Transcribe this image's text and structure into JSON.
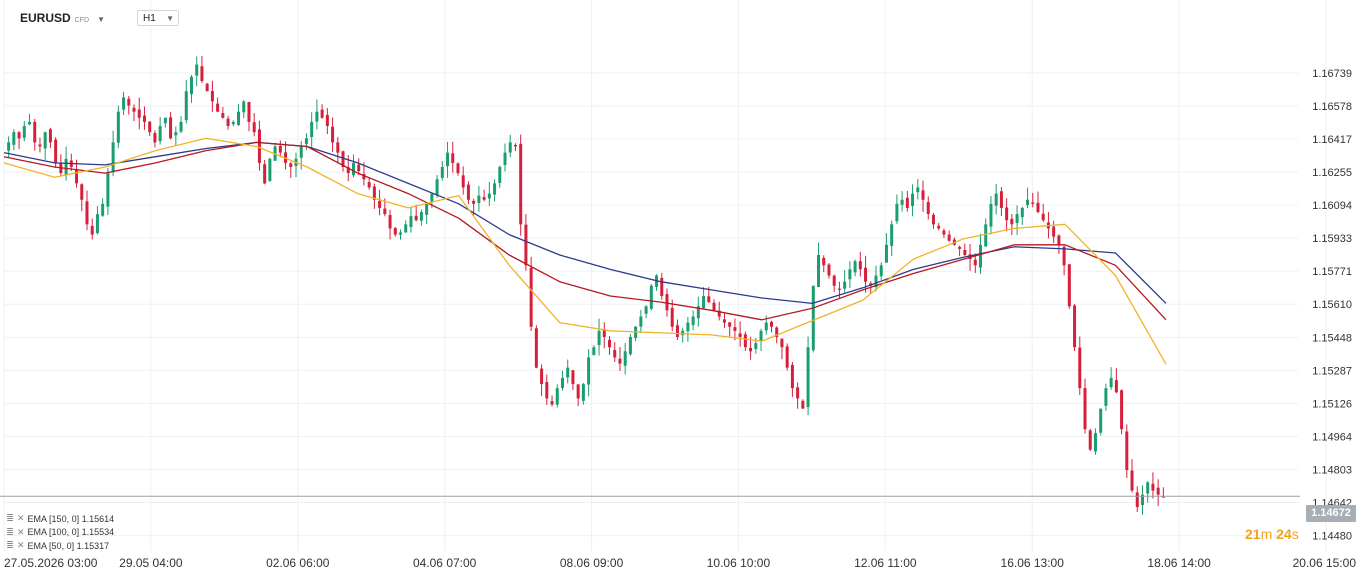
{
  "header": {
    "symbol": "EURUSD",
    "instrument_type": "CFD",
    "timeframe": "H1"
  },
  "legend": [
    {
      "label": "EMA [150, 0] 1.15614",
      "color": "#2d3a8c"
    },
    {
      "label": "EMA [100, 0] 1.15534",
      "color": "#b5191f"
    },
    {
      "label": "EMA [50, 0] 1.15317",
      "color": "#f0b429"
    }
  ],
  "current_price": "1.14672",
  "timer": {
    "minutes": "21",
    "m_unit": "m",
    "seconds": "24",
    "s_unit": "s"
  },
  "colors": {
    "up": "#1a9e6e",
    "down": "#d61f3b",
    "grid": "#eef0f2",
    "axis_text": "#333333"
  },
  "chart_data": {
    "type": "candlestick",
    "ylim": [
      1.144,
      1.169
    ],
    "y_ticks": [
      "1.16739",
      "1.16578",
      "1.16417",
      "1.16255",
      "1.16094",
      "1.15933",
      "1.15771",
      "1.15610",
      "1.15448",
      "1.15287",
      "1.15126",
      "1.14964",
      "1.14803",
      "1.14642",
      "1.14480"
    ],
    "x_ticks": [
      "27.05.2026 03:00",
      "29.05 04:00",
      "02.06 06:00",
      "04.06 07:00",
      "08.06 09:00",
      "10.06 10:00",
      "12.06 11:00",
      "16.06 13:00",
      "18.06 14:00",
      "20.06 15:00"
    ],
    "candles_close": [
      1.164,
      1.1645,
      1.1642,
      1.1648,
      1.165,
      1.164,
      1.1638,
      1.1645,
      1.164,
      1.163,
      1.1625,
      1.1632,
      1.1628,
      1.162,
      1.1612,
      1.16,
      1.1595,
      1.1605,
      1.161,
      1.1625,
      1.164,
      1.1655,
      1.1662,
      1.1658,
      1.1655,
      1.1652,
      1.165,
      1.1645,
      1.164,
      1.1648,
      1.1652,
      1.1642,
      1.1645,
      1.165,
      1.1665,
      1.1672,
      1.1678,
      1.167,
      1.1665,
      1.166,
      1.1655,
      1.1652,
      1.1648,
      1.165,
      1.1655,
      1.166,
      1.165,
      1.1645,
      1.163,
      1.162,
      1.1632,
      1.1638,
      1.1635,
      1.163,
      1.1628,
      1.1632,
      1.1638,
      1.1642,
      1.165,
      1.1655,
      1.1652,
      1.1648,
      1.164,
      1.1635,
      1.1628,
      1.1625,
      1.163,
      1.1626,
      1.1622,
      1.1618,
      1.1612,
      1.1608,
      1.1605,
      1.1598,
      1.1595,
      1.1596,
      1.16,
      1.1604,
      1.1602,
      1.1606,
      1.161,
      1.1615,
      1.1622,
      1.1628,
      1.1635,
      1.163,
      1.1625,
      1.1618,
      1.1612,
      1.161,
      1.1614,
      1.1612,
      1.1615,
      1.162,
      1.1628,
      1.1635,
      1.164,
      1.1638,
      1.16,
      1.158,
      1.155,
      1.153,
      1.1522,
      1.1515,
      1.1512,
      1.152,
      1.1525,
      1.153,
      1.1522,
      1.1515,
      1.1522,
      1.1535,
      1.154,
      1.1548,
      1.1545,
      1.154,
      1.1535,
      1.1532,
      1.1538,
      1.1545,
      1.155,
      1.1555,
      1.156,
      1.157,
      1.1575,
      1.1565,
      1.1558,
      1.155,
      1.1545,
      1.1548,
      1.1552,
      1.1555,
      1.156,
      1.1565,
      1.1562,
      1.1558,
      1.1555,
      1.1552,
      1.155,
      1.1548,
      1.1545,
      1.154,
      1.1538,
      1.1542,
      1.1548,
      1.1552,
      1.155,
      1.1545,
      1.154,
      1.153,
      1.152,
      1.1515,
      1.151,
      1.154,
      1.157,
      1.1585,
      1.158,
      1.1575,
      1.157,
      1.1568,
      1.1572,
      1.1578,
      1.1582,
      1.1578,
      1.1572,
      1.157,
      1.1575,
      1.158,
      1.159,
      1.16,
      1.161,
      1.1612,
      1.1608,
      1.1615,
      1.1618,
      1.1612,
      1.1605,
      1.16,
      1.1598,
      1.1595,
      1.1592,
      1.159,
      1.1588,
      1.1585,
      1.1583,
      1.158,
      1.159,
      1.16,
      1.161,
      1.1615,
      1.1608,
      1.1602,
      1.16,
      1.1605,
      1.1608,
      1.1612,
      1.161,
      1.1606,
      1.1602,
      1.1598,
      1.1594,
      1.159,
      1.158,
      1.156,
      1.154,
      1.152,
      1.15,
      1.149,
      1.1498,
      1.151,
      1.152,
      1.1525,
      1.1518,
      1.15,
      1.148,
      1.147,
      1.1462,
      1.1468,
      1.1474,
      1.147,
      1.1468,
      1.1467
    ],
    "ema_150": [
      1.1635,
      1.163,
      1.1629,
      1.1633,
      1.1637,
      1.164,
      1.1638,
      1.163,
      1.162,
      1.161,
      1.1595,
      1.1585,
      1.1578,
      1.1572,
      1.1568,
      1.1564,
      1.15614,
      1.1569,
      1.1578,
      1.1584,
      1.1589,
      1.1588,
      1.1586,
      1.15614
    ],
    "ema_100": [
      1.1633,
      1.1628,
      1.1625,
      1.163,
      1.1636,
      1.164,
      1.1638,
      1.1625,
      1.1615,
      1.1603,
      1.1585,
      1.1572,
      1.1565,
      1.1562,
      1.1558,
      1.15534,
      1.1559,
      1.1568,
      1.1576,
      1.1583,
      1.159,
      1.159,
      1.158,
      1.15534
    ],
    "ema_50": [
      1.163,
      1.1623,
      1.1628,
      1.1636,
      1.1642,
      1.1638,
      1.1628,
      1.1615,
      1.1608,
      1.1614,
      1.158,
      1.1552,
      1.1548,
      1.1547,
      1.1546,
      1.1543,
      1.1553,
      1.1563,
      1.1583,
      1.1593,
      1.1598,
      1.16,
      1.1575,
      1.15317
    ]
  }
}
